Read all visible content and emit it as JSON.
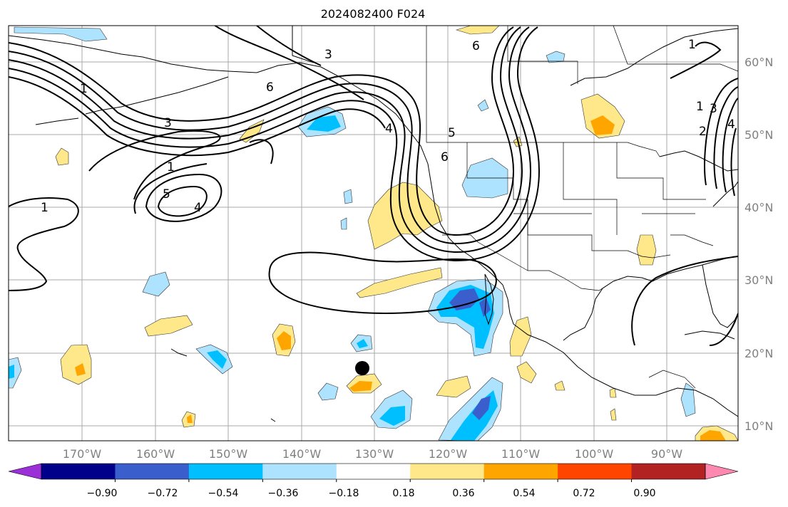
{
  "title": "2024082400 F024",
  "lon_ticks": [
    "170°W",
    "160°W",
    "150°W",
    "140°W",
    "130°W",
    "120°W",
    "110°W",
    "100°W",
    "90°W"
  ],
  "lat_ticks": [
    "60°N",
    "50°N",
    "40°N",
    "30°N",
    "20°N",
    "10°N"
  ],
  "colorbar": {
    "colors": [
      "#9b30d9",
      "#00008b",
      "#3a5fcd",
      "#00bfff",
      "#aee3ff",
      "#ffffff",
      "#ffe88a",
      "#ffa500",
      "#ff4500",
      "#b22222",
      "#ff88b0"
    ],
    "labels": [
      "−0.90",
      "−0.72",
      "−0.54",
      "−0.36",
      "−0.18",
      "0.18",
      "0.36",
      "0.54",
      "0.72",
      "0.90"
    ]
  },
  "contour_labels": [
    "1",
    "3",
    "4",
    "5",
    "6",
    "1",
    "3",
    "4",
    "5",
    "6",
    "1",
    "6",
    "2",
    "3",
    "4",
    "1",
    "1"
  ],
  "marker": "storm-position-marker"
}
